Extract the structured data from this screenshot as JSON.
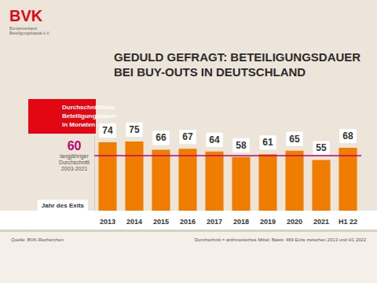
{
  "chart_data": {
    "type": "bar",
    "title": "GEDULD GEFRAGT: BETEILIGUNGSDAUER\nBEI BUY-OUTS IN DEUTSCHLAND",
    "logo": {
      "name": "BVK",
      "text": "Bundesverband\nBeteiligungskapital e.V."
    },
    "y_label": "Durchschnittliche\nBeteiligungsdauer\nin Monaten",
    "x_label": "Jahr des Exits",
    "categories": [
      "2013",
      "2014",
      "2015",
      "2016",
      "2017",
      "2018",
      "2019",
      "2020",
      "2021",
      "H1 22"
    ],
    "values": [
      74,
      75,
      66,
      67,
      64,
      58,
      61,
      65,
      55,
      68
    ],
    "color": "#f07c00",
    "ylim": [
      0,
      80
    ],
    "tick_labels": "x",
    "grid": false,
    "data_labels": true,
    "reference_line": {
      "value": 60,
      "text": "langjähriger\nDurchschnitt\n2003-2021",
      "color": "#c2006e"
    },
    "source": "Quelle: BVK-Recherchen",
    "note": "Durchschnitt = arithmetisches Mittel; Basis: 469 Exits zwischen 2013 und H1 2022"
  }
}
